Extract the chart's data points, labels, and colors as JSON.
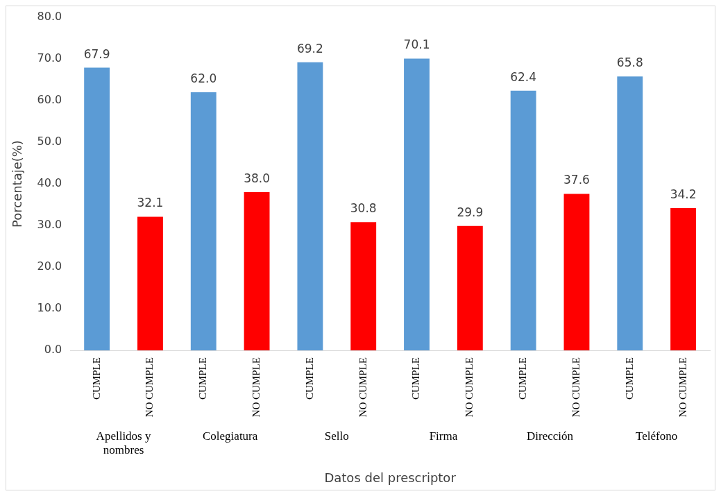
{
  "chart_data": {
    "type": "bar",
    "xlabel": "Datos del prescriptor",
    "ylabel": "Porcentaje(%)",
    "categories": [
      "CUMPLE",
      "NO CUMPLE",
      "CUMPLE",
      "NO CUMPLE",
      "CUMPLE",
      "NO CUMPLE",
      "CUMPLE",
      "NO CUMPLE",
      "CUMPLE",
      "NO CUMPLE",
      "CUMPLE",
      "NO CUMPLE"
    ],
    "values": [
      67.9,
      32.1,
      62.0,
      38.0,
      69.2,
      30.8,
      70.1,
      29.9,
      62.4,
      37.6,
      65.8,
      34.2
    ],
    "value_labels": [
      "67.9",
      "32.1",
      "62.0",
      "38.0",
      "69.2",
      "30.8",
      "70.1",
      "29.9",
      "62.4",
      "37.6",
      "65.8",
      "34.2"
    ],
    "colors": [
      "#5b9bd5",
      "#ff0000",
      "#5b9bd5",
      "#ff0000",
      "#5b9bd5",
      "#ff0000",
      "#5b9bd5",
      "#ff0000",
      "#5b9bd5",
      "#ff0000",
      "#5b9bd5",
      "#ff0000"
    ],
    "annotations": [
      "Apellidos y nombres",
      "Colegiatura",
      "Sello",
      "Firma",
      "Dirección",
      "Teléfono"
    ],
    "ylim": [
      0,
      80
    ],
    "yticks": [
      {
        "value": 0,
        "label": "0.0"
      },
      {
        "value": 10,
        "label": "10.0"
      },
      {
        "value": 20,
        "label": "20.0"
      },
      {
        "value": 30,
        "label": "30.0"
      },
      {
        "value": 40,
        "label": "40.0"
      },
      {
        "value": 50,
        "label": "50.0"
      },
      {
        "value": 60,
        "label": "60.0"
      },
      {
        "value": 70,
        "label": "70.0"
      },
      {
        "value": 80,
        "label": "80.0"
      }
    ],
    "grid": false,
    "legend": false
  }
}
